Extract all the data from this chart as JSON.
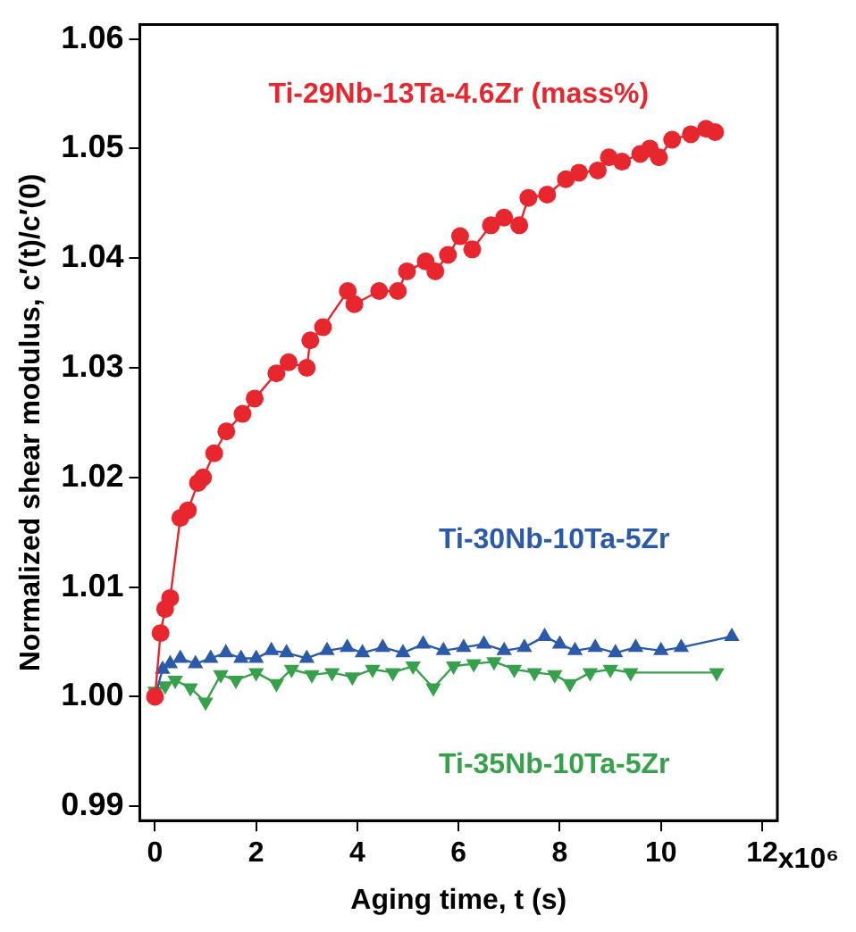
{
  "chart_data": {
    "type": "line",
    "xlabel": "Aging time, t (s)",
    "ylabel": "Normalized shear modulus, c′(t)/c′(0)",
    "xlim": [
      -0.3,
      12.3
    ],
    "xticks": [
      0,
      2,
      4,
      6,
      8,
      10,
      12
    ],
    "annotations": [
      "x10⁶"
    ],
    "ylim": [
      0.9887,
      1.0613
    ],
    "yticks": [
      0.99,
      {
        "value": 1,
        "label": "1.00"
      },
      1.01,
      1.02,
      1.03,
      1.04,
      1.05,
      1.06
    ],
    "grid": false,
    "legend": false,
    "series": [
      {
        "name": "Ti-29Nb-13Ta-4.6Zr (mass%)",
        "color": "#e8262d",
        "marker": "circle",
        "x": [
          0,
          0.11,
          0.2,
          0.3,
          0.5,
          0.65,
          0.85,
          0.95,
          1.17,
          1.41,
          1.73,
          1.97,
          2.4,
          2.64,
          3.0,
          3.07,
          3.32,
          3.81,
          3.94,
          4.43,
          4.8,
          4.98,
          5.35,
          5.54,
          5.79,
          6.03,
          6.27,
          6.64,
          6.9,
          7.2,
          7.38,
          7.75,
          8.12,
          8.38,
          8.75,
          8.97,
          9.23,
          9.59,
          9.78,
          9.96,
          10.22,
          10.59,
          10.89,
          11.07
        ],
        "values": [
          1.0,
          1.0058,
          1.008,
          1.009,
          1.0163,
          1.017,
          1.0195,
          1.02,
          1.0222,
          1.0242,
          1.0258,
          1.0272,
          1.0295,
          1.0305,
          1.03,
          1.0325,
          1.0337,
          1.037,
          1.0358,
          1.037,
          1.037,
          1.0388,
          1.0397,
          1.0388,
          1.0403,
          1.042,
          1.0408,
          1.043,
          1.0437,
          1.043,
          1.0455,
          1.0458,
          1.0472,
          1.0478,
          1.048,
          1.0492,
          1.0488,
          1.0495,
          1.05,
          1.0492,
          1.0508,
          1.0513,
          1.0518,
          1.0515
        ]
      },
      {
        "name": "Ti-30Nb-10Ta-5Zr",
        "color": "#2a5aa8",
        "marker": "triangle",
        "x": [
          0,
          0.15,
          0.3,
          0.5,
          0.8,
          1.1,
          1.4,
          1.7,
          2.0,
          2.3,
          2.6,
          3.0,
          3.4,
          3.8,
          4.1,
          4.5,
          4.9,
          5.3,
          5.7,
          6.1,
          6.5,
          6.9,
          7.3,
          7.7,
          8.0,
          8.3,
          8.7,
          9.1,
          9.5,
          10.0,
          10.4,
          11.4
        ],
        "values": [
          1.0,
          1.0025,
          1.003,
          1.0035,
          1.003,
          1.0035,
          1.004,
          1.0035,
          1.0035,
          1.0042,
          1.004,
          1.0035,
          1.0042,
          1.0045,
          1.004,
          1.0045,
          1.004,
          1.0048,
          1.0042,
          1.0045,
          1.0048,
          1.0042,
          1.0045,
          1.0055,
          1.0048,
          1.0042,
          1.0045,
          1.004,
          1.0045,
          1.0042,
          1.0045,
          1.0055
        ]
      },
      {
        "name": "Ti-35Nb-10Ta-5Zr",
        "color": "#36a04a",
        "marker": "triangle-down",
        "x": [
          0,
          0.2,
          0.4,
          0.7,
          1.0,
          1.3,
          1.6,
          2.0,
          2.4,
          2.7,
          3.1,
          3.5,
          3.9,
          4.3,
          4.7,
          5.1,
          5.5,
          5.9,
          6.3,
          6.7,
          7.1,
          7.5,
          7.9,
          8.2,
          8.6,
          9.0,
          9.4,
          11.1
        ],
        "values": [
          1.0005,
          1.001,
          1.0015,
          1.0008,
          0.9995,
          1.002,
          1.0015,
          1.0022,
          1.0012,
          1.0025,
          1.002,
          1.0022,
          1.0018,
          1.0025,
          1.0022,
          1.0028,
          1.0008,
          1.0028,
          1.003,
          1.0032,
          1.0025,
          1.0022,
          1.002,
          1.0012,
          1.0022,
          1.0025,
          1.0022,
          1.0022
        ]
      }
    ]
  }
}
